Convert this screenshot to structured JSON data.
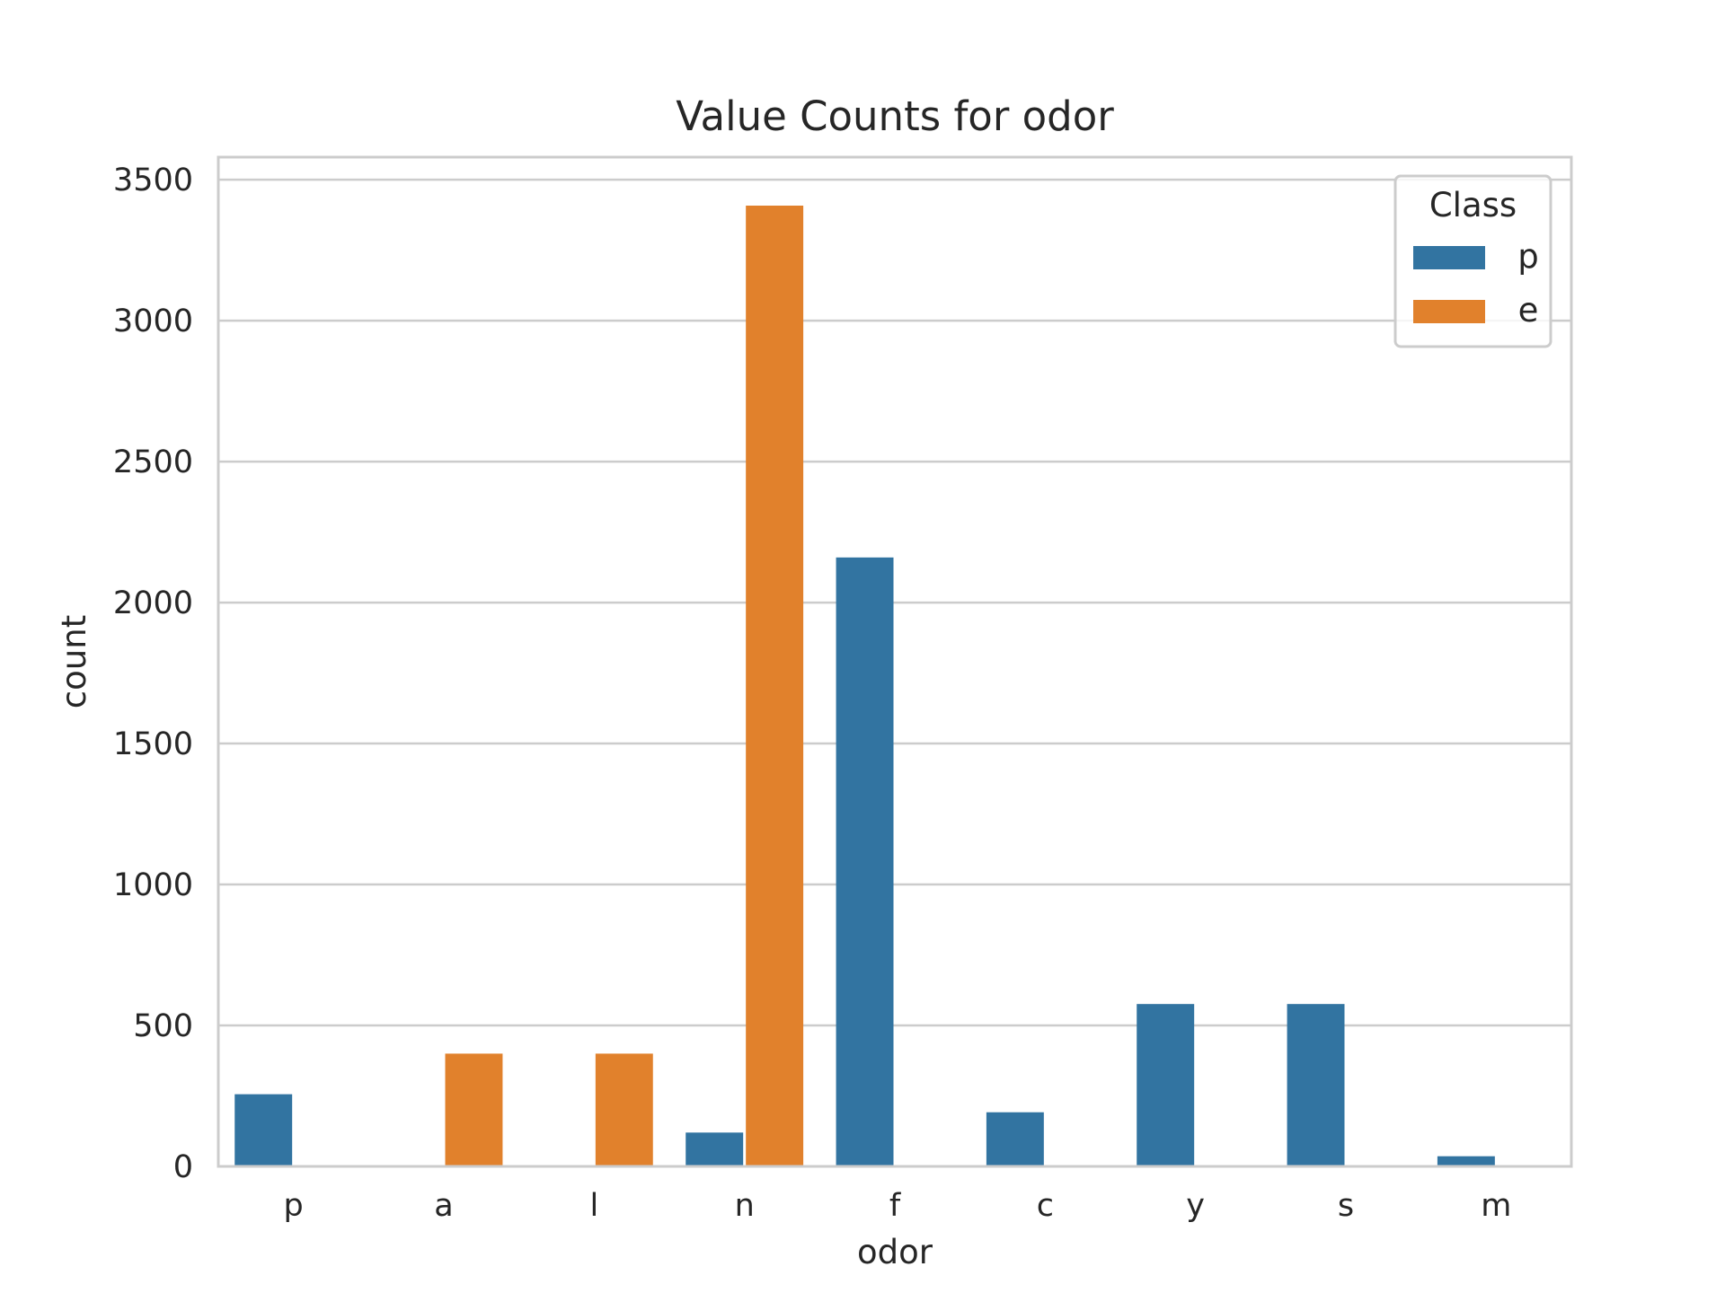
{
  "chart_data": {
    "type": "bar",
    "title": "Value Counts for odor",
    "xlabel": "odor",
    "ylabel": "count",
    "categories": [
      "p",
      "a",
      "l",
      "n",
      "f",
      "c",
      "y",
      "s",
      "m"
    ],
    "series": [
      {
        "name": "p",
        "color": "#3274a1",
        "values": [
          256,
          0,
          0,
          120,
          2160,
          192,
          576,
          576,
          36
        ]
      },
      {
        "name": "e",
        "color": "#e1812c",
        "values": [
          0,
          400,
          400,
          3408,
          0,
          0,
          0,
          0,
          0
        ]
      }
    ],
    "ylim": [
      0,
      3580
    ],
    "yticks": [
      0,
      500,
      1000,
      1500,
      2000,
      2500,
      3000,
      3500
    ],
    "grid": true,
    "legend": {
      "title": "Class",
      "placement": "top-right"
    }
  }
}
